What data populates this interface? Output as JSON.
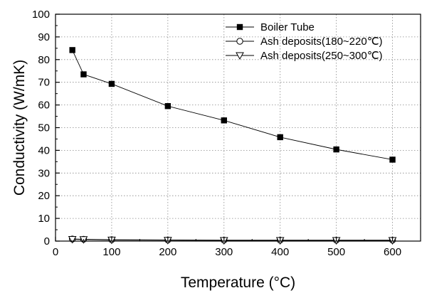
{
  "chart_data": {
    "type": "line",
    "title": "",
    "xlabel": "Temperature (°C)",
    "ylabel": "Conductivity (W/mK)",
    "xlim": [
      0,
      650
    ],
    "ylim": [
      0,
      100
    ],
    "xticks": [
      0,
      100,
      200,
      300,
      400,
      500,
      600
    ],
    "yticks": [
      0,
      10,
      20,
      30,
      40,
      50,
      60,
      70,
      80,
      90,
      100
    ],
    "grid": true,
    "legend_position": "top-right",
    "series": [
      {
        "name": "Boiler Tube",
        "marker": "filled-square",
        "color": "#000000",
        "x": [
          30,
          50,
          100,
          200,
          300,
          400,
          500,
          600
        ],
        "y": [
          84.2,
          73.5,
          69.3,
          59.5,
          53.2,
          45.8,
          40.4,
          35.9
        ]
      },
      {
        "name": "Ash deposits(180~220℃)",
        "marker": "open-circle",
        "color": "#000000",
        "x": [
          30,
          50,
          100,
          200,
          300,
          400,
          500,
          600
        ],
        "y": [
          0.9,
          0.8,
          0.6,
          0.5,
          0.4,
          0.4,
          0.4,
          0.4
        ]
      },
      {
        "name": "Ash deposits(250~300℃)",
        "marker": "open-triangle-down",
        "color": "#000000",
        "x": [
          30,
          50,
          100,
          200,
          300,
          400,
          500,
          600
        ],
        "y": [
          0.8,
          0.7,
          0.5,
          0.4,
          0.3,
          0.3,
          0.3,
          0.3
        ]
      }
    ]
  }
}
